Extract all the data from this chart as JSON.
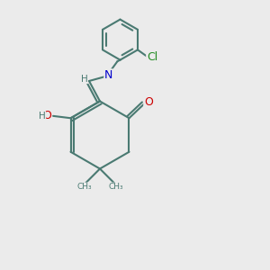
{
  "background_color": "#ebebeb",
  "bond_color": "#4a7a72",
  "bond_width": 1.5,
  "atom_colors": {
    "N": "#0000cc",
    "O": "#cc0000",
    "Cl": "#228b22",
    "H": "#4a7a72",
    "C": "#4a7a72"
  },
  "font_size": 9,
  "font_size_small": 7.5
}
